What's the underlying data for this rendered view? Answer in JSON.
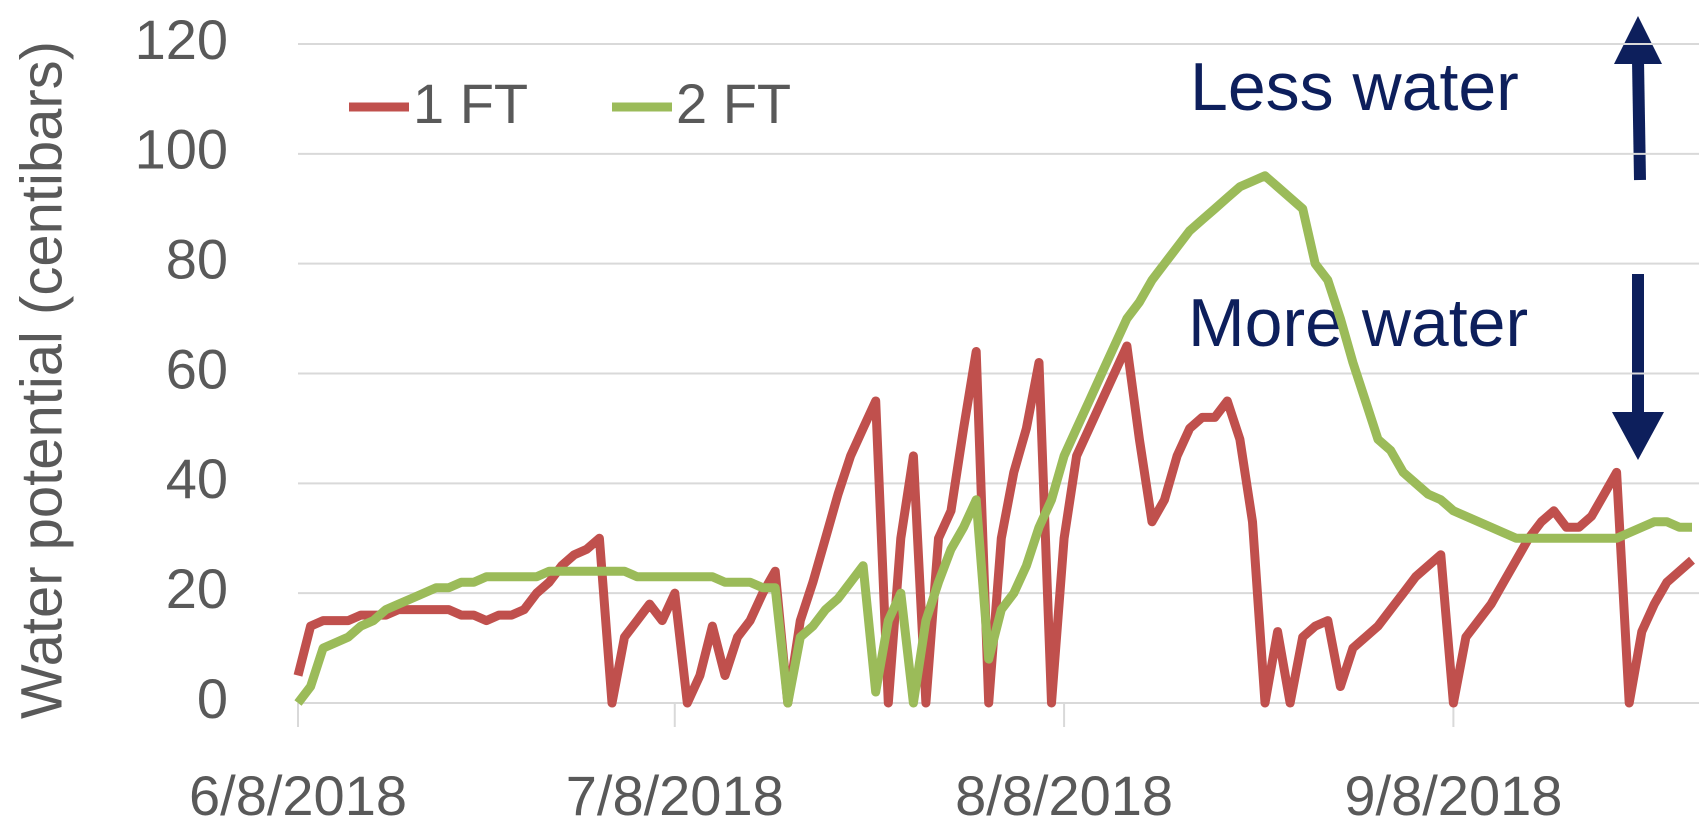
{
  "chart_data": {
    "type": "line",
    "y_label": "Water potential (centibars)",
    "annotations": [
      "Less water",
      "More water"
    ],
    "x": [
      "6/8/2018",
      "6/9/2018",
      "6/10/2018",
      "6/11/2018",
      "6/12/2018",
      "6/13/2018",
      "6/14/2018",
      "6/15/2018",
      "6/16/2018",
      "6/17/2018",
      "6/18/2018",
      "6/19/2018",
      "6/20/2018",
      "6/21/2018",
      "6/22/2018",
      "6/23/2018",
      "6/24/2018",
      "6/25/2018",
      "6/26/2018",
      "6/27/2018",
      "6/28/2018",
      "6/29/2018",
      "6/30/2018",
      "7/1/2018",
      "7/2/2018",
      "7/3/2018",
      "7/4/2018",
      "7/5/2018",
      "7/6/2018",
      "7/7/2018",
      "7/8/2018",
      "7/9/2018",
      "7/10/2018",
      "7/11/2018",
      "7/12/2018",
      "7/13/2018",
      "7/14/2018",
      "7/15/2018",
      "7/16/2018",
      "7/17/2018",
      "7/18/2018",
      "7/19/2018",
      "7/20/2018",
      "7/21/2018",
      "7/22/2018",
      "7/23/2018",
      "7/24/2018",
      "7/25/2018",
      "7/26/2018",
      "7/27/2018",
      "7/28/2018",
      "7/29/2018",
      "7/30/2018",
      "7/31/2018",
      "8/1/2018",
      "8/2/2018",
      "8/3/2018",
      "8/4/2018",
      "8/5/2018",
      "8/6/2018",
      "8/7/2018",
      "8/8/2018",
      "8/9/2018",
      "8/10/2018",
      "8/11/2018",
      "8/12/2018",
      "8/13/2018",
      "8/14/2018",
      "8/15/2018",
      "8/16/2018",
      "8/17/2018",
      "8/18/2018",
      "8/19/2018",
      "8/20/2018",
      "8/21/2018",
      "8/22/2018",
      "8/23/2018",
      "8/24/2018",
      "8/25/2018",
      "8/26/2018",
      "8/27/2018",
      "8/28/2018",
      "8/29/2018",
      "8/30/2018",
      "8/31/2018",
      "9/1/2018",
      "9/2/2018",
      "9/3/2018",
      "9/4/2018",
      "9/5/2018",
      "9/6/2018",
      "9/7/2018",
      "9/8/2018",
      "9/9/2018",
      "9/10/2018",
      "9/11/2018",
      "9/12/2018",
      "9/13/2018",
      "9/14/2018",
      "9/15/2018",
      "9/16/2018",
      "9/17/2018",
      "9/18/2018",
      "9/19/2018",
      "9/20/2018",
      "9/21/2018",
      "9/22/2018",
      "9/23/2018",
      "9/24/2018",
      "9/25/2018",
      "9/26/2018",
      "9/27/2018"
    ],
    "series": [
      {
        "name": "1 FT",
        "color": "#c0504d",
        "values": [
          5,
          14,
          15,
          15,
          15,
          16,
          16,
          16,
          17,
          17,
          17,
          17,
          17,
          16,
          16,
          15,
          16,
          16,
          17,
          20,
          22,
          25,
          27,
          28,
          30,
          0,
          12,
          15,
          18,
          15,
          20,
          0,
          5,
          14,
          5,
          12,
          15,
          20,
          24,
          0,
          15,
          22,
          30,
          38,
          45,
          50,
          55,
          0,
          30,
          45,
          0,
          30,
          35,
          50,
          64,
          0,
          30,
          42,
          50,
          62,
          0,
          30,
          45,
          50,
          55,
          60,
          65,
          48,
          33,
          37,
          45,
          50,
          52,
          52,
          55,
          48,
          33,
          0,
          13,
          0,
          12,
          14,
          15,
          3,
          10,
          12,
          14,
          17,
          20,
          23,
          25,
          27,
          0,
          12,
          15,
          18,
          22,
          26,
          30,
          33,
          35,
          32,
          32,
          34,
          38,
          42,
          0,
          13,
          18,
          22,
          24,
          26
        ]
      },
      {
        "name": "2 FT",
        "color": "#9bbb59",
        "values": [
          0,
          3,
          10,
          11,
          12,
          14,
          15,
          17,
          18,
          19,
          20,
          21,
          21,
          22,
          22,
          23,
          23,
          23,
          23,
          23,
          24,
          24,
          24,
          24,
          24,
          24,
          24,
          23,
          23,
          23,
          23,
          23,
          23,
          23,
          22,
          22,
          22,
          21,
          21,
          0,
          12,
          14,
          17,
          19,
          22,
          25,
          2,
          15,
          20,
          0,
          15,
          22,
          28,
          32,
          37,
          8,
          17,
          20,
          25,
          32,
          37,
          45,
          50,
          55,
          60,
          65,
          70,
          73,
          77,
          80,
          83,
          86,
          88,
          90,
          92,
          94,
          95,
          96,
          94,
          92,
          90,
          80,
          77,
          70,
          62,
          55,
          48,
          46,
          42,
          40,
          38,
          37,
          35,
          34,
          33,
          32,
          31,
          30,
          30,
          30,
          30,
          30,
          30,
          30,
          30,
          30,
          31,
          32,
          33,
          33,
          32,
          32
        ]
      }
    ],
    "xlim": [
      "6/8/2018",
      "9/27/2018"
    ],
    "xticks": [
      "6/8/2018",
      "7/8/2018",
      "8/8/2018",
      "9/8/2018"
    ],
    "ylim": [
      0,
      120
    ],
    "yticks": [
      0,
      20,
      40,
      60,
      80,
      100,
      120
    ],
    "grid": true,
    "legend": "top-left"
  }
}
